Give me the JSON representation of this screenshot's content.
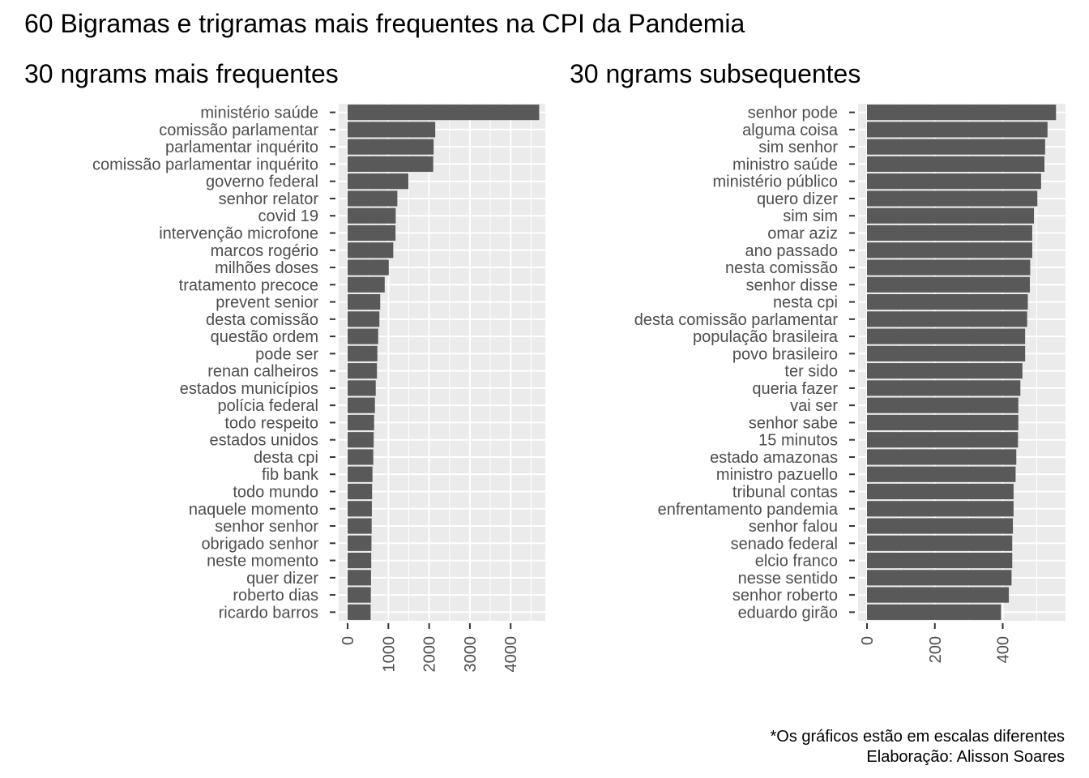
{
  "title": "60 Bigramas e trigramas mais frequentes na CPI da Pandemia",
  "caption_lines": [
    "*Os gráficos estão em escalas diferentes",
    "Elaboração: Alisson Soares"
  ],
  "colors": {
    "panel_bg": "#ebebeb",
    "grid": "#ffffff",
    "bar": "#595959",
    "axis_text": "#4d4d4d",
    "tick": "#333333"
  },
  "chart_data": [
    {
      "type": "bar",
      "orientation": "horizontal",
      "title": "30 ngrams mais frequentes",
      "xlabel": "",
      "ylabel": "",
      "xlim": [
        0,
        4850
      ],
      "xticks": [
        0,
        1000,
        2000,
        3000,
        4000
      ],
      "xtick_labels": [
        "0",
        "1000",
        "2000",
        "3000",
        "4000"
      ],
      "grid": true,
      "categories": [
        "ministério saúde",
        "comissão parlamentar",
        "parlamentar inquérito",
        "comissão parlamentar inquérito",
        "governo federal",
        "senhor relator",
        "covid 19",
        "intervenção microfone",
        "marcos rogério",
        "milhões doses",
        "tratamento precoce",
        "prevent senior",
        "desta comissão",
        "questão ordem",
        "pode ser",
        "renan calheiros",
        "estados municípios",
        "polícia federal",
        "todo respeito",
        "estados unidos",
        "desta cpi",
        "fib bank",
        "todo mundo",
        "naquele momento",
        "senhor senhor",
        "obrigado senhor",
        "neste momento",
        "quer dizer",
        "roberto dias",
        "ricardo barros"
      ],
      "values": [
        4700,
        2150,
        2110,
        2100,
        1490,
        1220,
        1180,
        1175,
        1120,
        1010,
        910,
        800,
        780,
        750,
        730,
        720,
        690,
        670,
        650,
        640,
        630,
        610,
        600,
        595,
        590,
        585,
        580,
        575,
        570,
        565
      ]
    },
    {
      "type": "bar",
      "orientation": "horizontal",
      "title": "30 ngrams subsequentes",
      "xlabel": "",
      "ylabel": "",
      "xlim": [
        0,
        585
      ],
      "xticks": [
        0,
        200,
        400
      ],
      "xtick_labels": [
        "0",
        "200",
        "400"
      ],
      "grid": true,
      "categories": [
        "senhor pode",
        "alguma coisa",
        "sim senhor",
        "ministro saúde",
        "ministério público",
        "quero dizer",
        "sim sim",
        "omar aziz",
        "ano passado",
        "nesta comissão",
        "senhor disse",
        "nesta cpi",
        "desta comissão parlamentar",
        "população brasileira",
        "povo brasileiro",
        "ter sido",
        "queria fazer",
        "vai ser",
        "senhor sabe",
        "15 minutos",
        "estado amazonas",
        "ministro pazuello",
        "tribunal contas",
        "enfrentamento pandemia",
        "senhor falou",
        "senado federal",
        "elcio franco",
        "nesse sentido",
        "senhor roberto",
        "eduardo girão"
      ],
      "values": [
        557,
        532,
        525,
        523,
        513,
        502,
        492,
        487,
        487,
        481,
        480,
        474,
        472,
        466,
        466,
        458,
        452,
        446,
        446,
        445,
        440,
        438,
        432,
        432,
        430,
        428,
        428,
        426,
        418,
        395
      ]
    }
  ]
}
